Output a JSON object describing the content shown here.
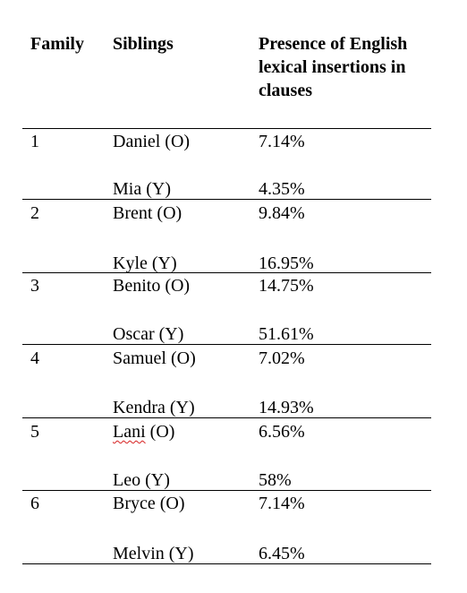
{
  "table": {
    "headers": {
      "family": "Family",
      "siblings": "Siblings",
      "presence": "Presence of English lexical insertions in clauses"
    },
    "families": [
      {
        "family": "1",
        "older": {
          "name": "Daniel (O)",
          "pct": "7.14%"
        },
        "younger": {
          "name": "Mia (Y)",
          "pct": "4.35%"
        }
      },
      {
        "family": "2",
        "older": {
          "name": "Brent (O)",
          "pct": "9.84%"
        },
        "younger": {
          "name": "Kyle (Y)",
          "pct": "16.95%"
        }
      },
      {
        "family": "3",
        "older": {
          "name": "Benito (O)",
          "pct": "14.75%"
        },
        "younger": {
          "name": "Oscar (Y)",
          "pct": "51.61%"
        }
      },
      {
        "family": "4",
        "older": {
          "name": "Samuel (O)",
          "pct": "7.02%"
        },
        "younger": {
          "name": "Kendra (Y)",
          "pct": "14.93%"
        }
      },
      {
        "family": "5",
        "older": {
          "name_first": "Lani",
          "name_rest": " (O)",
          "pct": "6.56%"
        },
        "younger": {
          "name": "Leo (Y)",
          "pct": "58%"
        }
      },
      {
        "family": "6",
        "older": {
          "name": "Bryce (O)",
          "pct": "7.14%"
        },
        "younger": {
          "name": "Melvin (Y)",
          "pct": "6.45%"
        }
      }
    ]
  }
}
